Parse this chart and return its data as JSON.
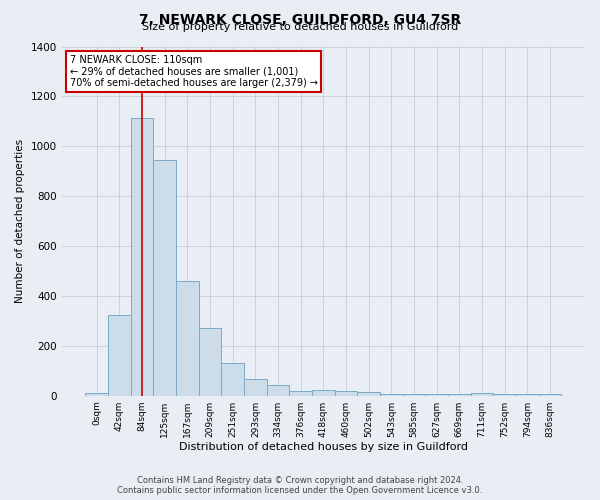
{
  "title": "7, NEWARK CLOSE, GUILDFORD, GU4 7SR",
  "subtitle": "Size of property relative to detached houses in Guildford",
  "xlabel": "Distribution of detached houses by size in Guildford",
  "ylabel": "Number of detached properties",
  "bin_labels": [
    "0sqm",
    "42sqm",
    "84sqm",
    "125sqm",
    "167sqm",
    "209sqm",
    "251sqm",
    "293sqm",
    "334sqm",
    "376sqm",
    "418sqm",
    "460sqm",
    "502sqm",
    "543sqm",
    "585sqm",
    "627sqm",
    "669sqm",
    "711sqm",
    "752sqm",
    "794sqm",
    "836sqm"
  ],
  "bar_values": [
    10,
    325,
    1115,
    945,
    460,
    270,
    130,
    65,
    42,
    20,
    22,
    20,
    15,
    5,
    5,
    5,
    5,
    10,
    5,
    5,
    5
  ],
  "bar_color": "#ccdce8",
  "bar_edge_color": "#7aaac8",
  "vline_x_index": 2.0,
  "vline_color": "#cc0000",
  "ylim": [
    0,
    1400
  ],
  "annotation_text": "7 NEWARK CLOSE: 110sqm\n← 29% of detached houses are smaller (1,001)\n70% of semi-detached houses are larger (2,379) →",
  "annotation_box_color": "#ffffff",
  "annotation_box_edge_color": "#cc0000",
  "footer_line1": "Contains HM Land Registry data © Crown copyright and database right 2024.",
  "footer_line2": "Contains public sector information licensed under the Open Government Licence v3.0.",
  "bg_color": "#e8eef4",
  "plot_bg_color": "#e8eef4",
  "grid_color": "#c8ccd8"
}
